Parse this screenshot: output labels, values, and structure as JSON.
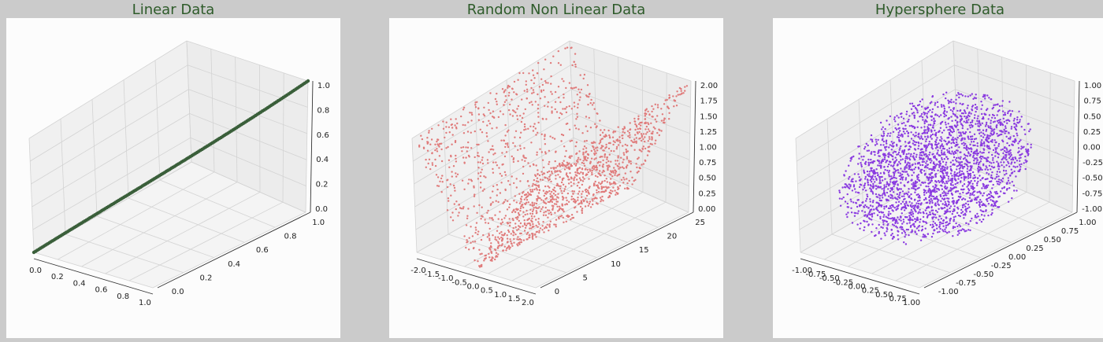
{
  "title_color": "#2e5b2a",
  "chart_data": [
    {
      "type": "scatter",
      "projection": "3d",
      "title": "Linear Data",
      "color": "#3a5f3a",
      "grid": true,
      "xlim": [
        0,
        1
      ],
      "ylim": [
        0,
        1
      ],
      "zlim": [
        0,
        1
      ],
      "x_ticks": [
        "0.0",
        "0.2",
        "0.4",
        "0.6",
        "0.8",
        "1.0"
      ],
      "y_ticks": [
        "0.0",
        "0.2",
        "0.4",
        "0.6",
        "0.8",
        "1.0"
      ],
      "z_ticks": [
        "0.0",
        "0.2",
        "0.4",
        "0.6",
        "0.8",
        "1.0"
      ],
      "pattern": "line x=y=z",
      "points": [
        [
          0,
          0,
          0
        ],
        [
          0.1,
          0.1,
          0.1
        ],
        [
          0.2,
          0.2,
          0.2
        ],
        [
          0.3,
          0.3,
          0.3
        ],
        [
          0.4,
          0.4,
          0.4
        ],
        [
          0.5,
          0.5,
          0.5
        ],
        [
          0.6,
          0.6,
          0.6
        ],
        [
          0.7,
          0.7,
          0.7
        ],
        [
          0.8,
          0.8,
          0.8
        ],
        [
          0.9,
          0.9,
          0.9
        ],
        [
          1,
          1,
          1
        ]
      ]
    },
    {
      "type": "scatter",
      "projection": "3d",
      "title": "Random Non Linear Data",
      "color": "#e07b7b",
      "grid": true,
      "xlim": [
        -2,
        2
      ],
      "ylim": [
        0,
        25
      ],
      "zlim": [
        0,
        2
      ],
      "x_ticks": [
        "-2.0",
        "-1.5",
        "-1.0",
        "-0.5",
        "0.0",
        "0.5",
        "1.0",
        "1.5",
        "2.0"
      ],
      "y_ticks": [
        "0",
        "5",
        "10",
        "15",
        "20",
        "25"
      ],
      "z_ticks": [
        "0.00",
        "0.25",
        "0.50",
        "0.75",
        "1.00",
        "1.25",
        "1.50",
        "1.75",
        "2.00"
      ],
      "pattern": "z = |x|, y random in [0,25]",
      "points": [
        [
          -2,
          0,
          2
        ],
        [
          -2,
          12,
          2
        ],
        [
          -2,
          25,
          2
        ],
        [
          -1,
          5,
          1
        ],
        [
          -1,
          20,
          1
        ],
        [
          0,
          10,
          0
        ],
        [
          0,
          25,
          0
        ],
        [
          1,
          3,
          1
        ],
        [
          1,
          18,
          1
        ],
        [
          2,
          0,
          2
        ],
        [
          2,
          12,
          2
        ],
        [
          2,
          25,
          2
        ]
      ]
    },
    {
      "type": "scatter",
      "projection": "3d",
      "title": "Hypersphere Data",
      "color": "#8a3be0",
      "grid": true,
      "xlim": [
        -1,
        1
      ],
      "ylim": [
        -1,
        1
      ],
      "zlim": [
        -1,
        1
      ],
      "x_ticks": [
        "-1.00",
        "-0.75",
        "-0.50",
        "-0.25",
        "0.00",
        "0.25",
        "0.50",
        "0.75",
        "1.00"
      ],
      "y_ticks": [
        "-1.00",
        "-0.75",
        "-0.50",
        "-0.25",
        "0.00",
        "0.25",
        "0.50",
        "0.75",
        "1.00"
      ],
      "z_ticks": [
        "-1.00",
        "-0.75",
        "-0.50",
        "-0.25",
        "0.00",
        "0.25",
        "0.50",
        "0.75",
        "1.00"
      ],
      "pattern": "points uniformly inside unit sphere",
      "points": [
        [
          0,
          0,
          0
        ],
        [
          0.5,
          0.5,
          0.5
        ],
        [
          -0.5,
          -0.5,
          -0.5
        ],
        [
          0.8,
          0,
          0
        ],
        [
          -0.8,
          0,
          0
        ],
        [
          0,
          0.8,
          0
        ],
        [
          0,
          -0.8,
          0
        ],
        [
          0,
          0,
          0.8
        ],
        [
          0,
          0,
          -0.8
        ]
      ]
    }
  ]
}
